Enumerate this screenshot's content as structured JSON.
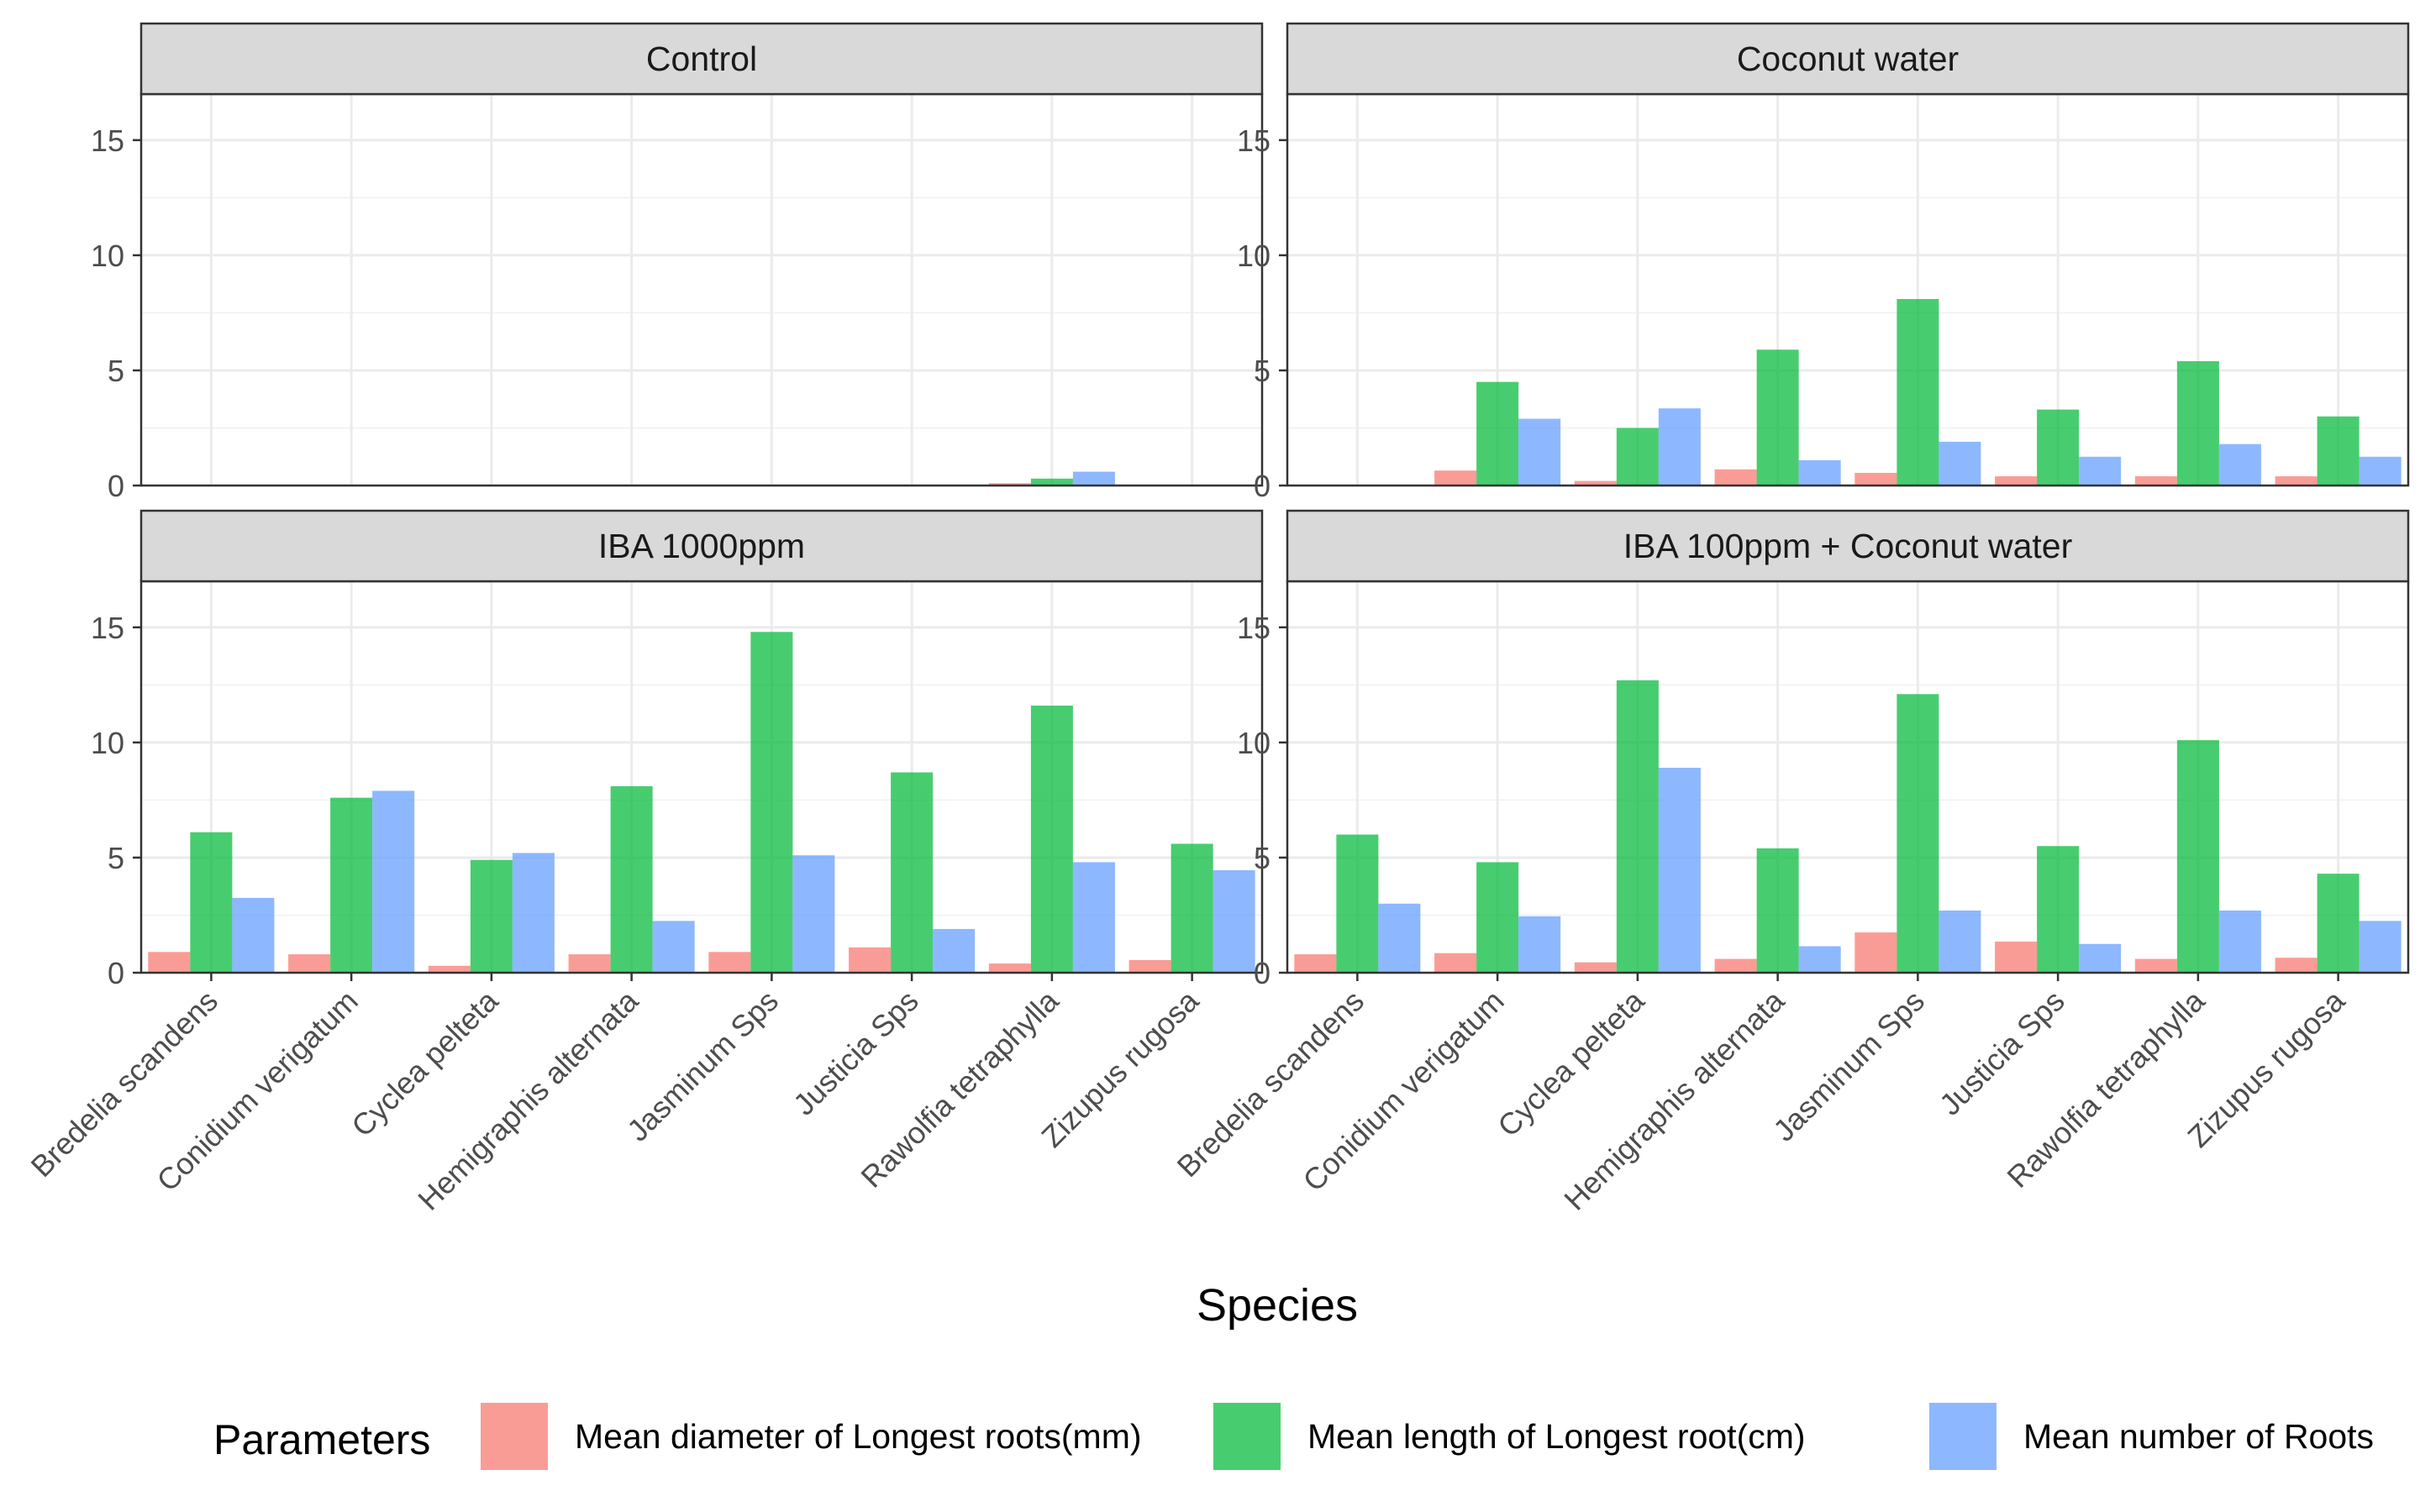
{
  "chart_data": {
    "type": "bar",
    "xlabel": "Species",
    "ylabel": "",
    "ylim": [
      0,
      17
    ],
    "y_ticks": [
      0,
      5,
      10,
      15
    ],
    "grid": true,
    "legend_placement": "bottom",
    "legend_title": "Parameters",
    "categories": [
      "Bredelia scandens",
      "Conidium verigatum",
      "Cyclea pelteta",
      "Hemigraphis alternata",
      "Jasminum Sps",
      "Justicia Sps",
      "Rawolfia tetraphylla",
      "Zizupus rugosa"
    ],
    "series_names": [
      "Mean diameter of Longest roots(mm)",
      "Mean length of Longest root(cm)",
      "Mean number of Roots"
    ],
    "series_colors": [
      "#F8766D",
      "#00BA38",
      "#619CFF"
    ],
    "facets": [
      {
        "title": "Control",
        "series": [
          {
            "values": [
              0,
              0,
              0,
              0,
              0,
              0,
              0.1,
              0
            ]
          },
          {
            "values": [
              0,
              0,
              0,
              0,
              0,
              0,
              0.3,
              0
            ]
          },
          {
            "values": [
              0,
              0,
              0,
              0,
              0,
              0,
              0.6,
              0
            ]
          }
        ]
      },
      {
        "title": "Coconut water",
        "series": [
          {
            "values": [
              0,
              0.65,
              0.2,
              0.7,
              0.55,
              0.4,
              0.4,
              0.4
            ]
          },
          {
            "values": [
              0,
              4.5,
              2.5,
              5.9,
              8.1,
              3.3,
              5.4,
              3.0
            ]
          },
          {
            "values": [
              0,
              2.9,
              3.35,
              1.1,
              1.9,
              1.25,
              1.8,
              1.25
            ]
          }
        ]
      },
      {
        "title": "IBA 1000ppm",
        "series": [
          {
            "values": [
              0.9,
              0.8,
              0.3,
              0.8,
              0.9,
              1.1,
              0.4,
              0.55
            ]
          },
          {
            "values": [
              6.1,
              7.6,
              4.9,
              8.1,
              14.8,
              8.7,
              11.6,
              5.6
            ]
          },
          {
            "values": [
              3.25,
              7.9,
              5.2,
              2.25,
              5.1,
              1.9,
              4.8,
              4.45
            ]
          }
        ]
      },
      {
        "title": "IBA 100ppm + Coconut water",
        "series": [
          {
            "values": [
              0.8,
              0.85,
              0.45,
              0.6,
              1.75,
              1.35,
              0.6,
              0.65
            ]
          },
          {
            "values": [
              6.0,
              4.8,
              12.7,
              5.4,
              12.1,
              5.5,
              10.1,
              4.3
            ]
          },
          {
            "values": [
              3.0,
              2.45,
              8.9,
              1.15,
              2.7,
              1.25,
              2.7,
              2.25
            ]
          }
        ]
      }
    ]
  }
}
